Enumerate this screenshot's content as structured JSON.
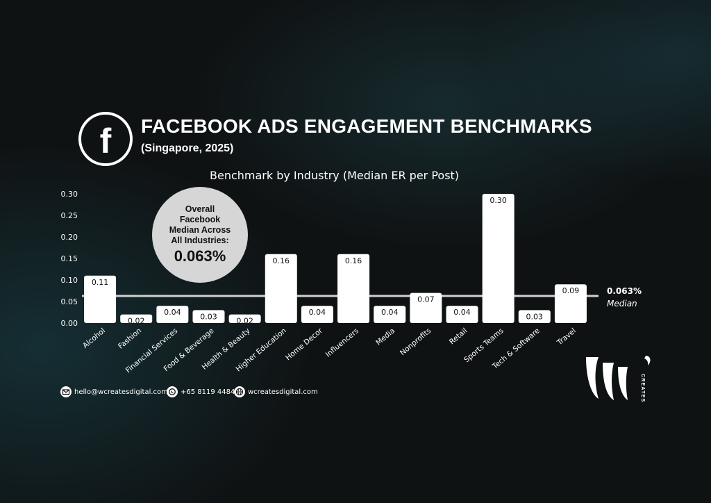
{
  "header": {
    "icon": "facebook-icon",
    "title": "FACEBOOK ADS ENGAGEMENT BENCHMARKS",
    "subtitle": "(Singapore, 2025)"
  },
  "overall": {
    "text": "Overall Facebook Median Across All Industries:",
    "value": "0.063%"
  },
  "median_line": {
    "value_label": "0.063%",
    "label": "Median"
  },
  "contacts": {
    "email": "hello@wcreatesdigital.com",
    "phone": "+65 8119 4484",
    "website": "wcreatesdigital.com"
  },
  "brand": {
    "logo_letters": "W",
    "logo_word": "CREATES"
  },
  "colors": {
    "bar": "#ffffff",
    "median_line": "#d0d0d0",
    "circle": "#d6d6d6",
    "text": "#ffffff"
  },
  "chart_data": {
    "type": "bar",
    "title": "Benchmark by Industry (Median ER per Post)",
    "xlabel": "",
    "ylabel": "",
    "categories": [
      "Alcohol",
      "Fashion",
      "Financial Services",
      "Food & Beverage",
      "Health & Beauty",
      "Higher Education",
      "Home Decor",
      "Influencers",
      "Media",
      "Nonprofits",
      "Retail",
      "Sports Teams",
      "Tech & Software",
      "Travel"
    ],
    "values": [
      0.11,
      0.02,
      0.04,
      0.03,
      0.02,
      0.16,
      0.04,
      0.16,
      0.04,
      0.07,
      0.04,
      0.3,
      0.03,
      0.09
    ],
    "value_labels": [
      "0.11",
      "0.02",
      "0.04",
      "0.03",
      "0.02",
      "0.16",
      "0.04",
      "0.16",
      "0.04",
      "0.07",
      "0.04",
      "0.30",
      "0.03",
      "0.09"
    ],
    "y_ticks": [
      "0.00",
      "0.05",
      "0.10",
      "0.15",
      "0.20",
      "0.25",
      "0.30"
    ],
    "ylim": [
      0,
      0.3
    ],
    "reference_line": 0.063,
    "grid": false,
    "legend": "none"
  }
}
